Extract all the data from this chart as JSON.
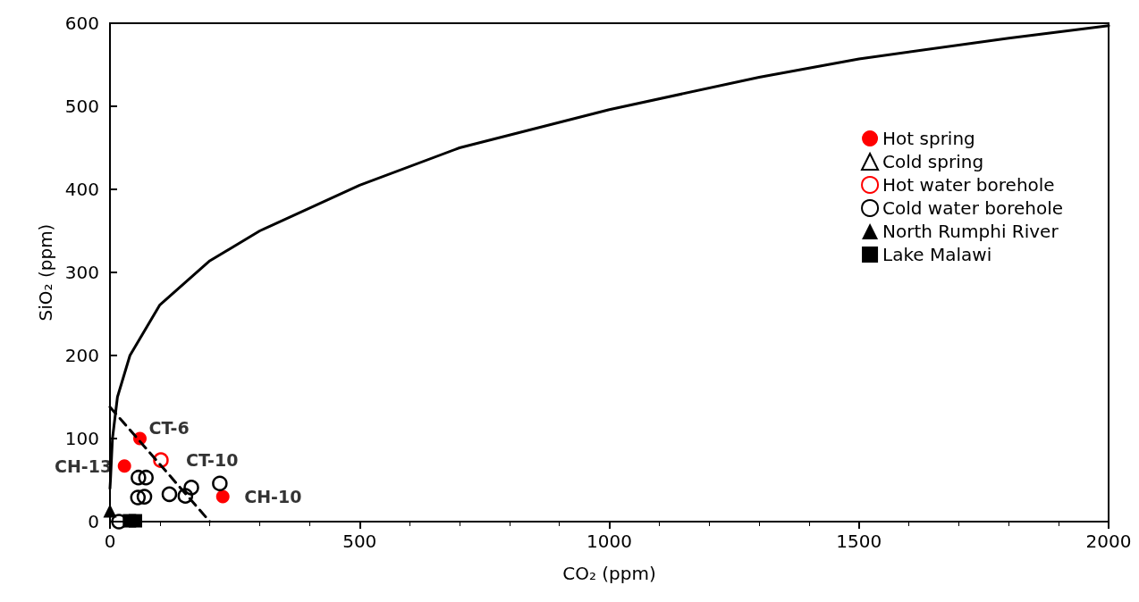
{
  "chart_data": {
    "type": "scatter",
    "xlabel": "CO₂ (ppm)",
    "ylabel": "SiO₂ (ppm)",
    "xlim": [
      0,
      2000
    ],
    "xticks": [
      0,
      500,
      1000,
      1500,
      2000
    ],
    "ylim": [
      0,
      600
    ],
    "yticks": [
      0,
      100,
      200,
      300,
      400,
      500,
      600
    ],
    "grid": false,
    "legend": "right",
    "series": [
      {
        "name": "Hot spring",
        "color": "#ff0000",
        "marker": "circle",
        "x": [
          60,
          29,
          226
        ],
        "values": [
          100,
          67,
          30
        ]
      },
      {
        "name": "Cold spring",
        "color": "#000000",
        "marker": "triangle"
      },
      {
        "name": "Hot water borehole",
        "color": "#ff0000",
        "marker": "circle",
        "x": [
          102
        ],
        "values": [
          74
        ]
      },
      {
        "name": "Cold water borehole",
        "color": "#000000",
        "marker": "circle",
        "x": [
          57,
          72,
          56,
          69,
          119,
          151,
          163,
          220,
          18
        ],
        "values": [
          53,
          53,
          29,
          30,
          33,
          31,
          41,
          46,
          0
        ]
      },
      {
        "name": "North Rumphi River",
        "color": "#000000",
        "marker": "triangle",
        "x": [
          0
        ],
        "values": [
          13
        ]
      },
      {
        "name": "Lake Malawi",
        "color": "#000000",
        "marker": "square",
        "x": [
          39,
          51
        ],
        "values": [
          1,
          1
        ]
      },
      {
        "type": "line",
        "color": "#000000",
        "marker": "none",
        "line_style": "solid",
        "x": [
          0,
          1,
          5,
          15,
          40,
          100,
          200,
          300,
          500,
          700,
          1000,
          1300,
          1500,
          1800,
          2000
        ],
        "values": [
          40,
          50,
          100,
          150,
          200,
          261,
          314,
          350,
          405,
          450,
          496,
          535,
          557,
          582,
          597
        ]
      },
      {
        "type": "line",
        "color": "#000000",
        "marker": "none",
        "line_style": "dashed",
        "x": [
          0,
          200
        ],
        "values": [
          138,
          0
        ]
      }
    ],
    "annotations": [
      {
        "text": "CT-6",
        "x": 60,
        "y": 100
      },
      {
        "text": "CH-13",
        "x": 29,
        "y": 67
      },
      {
        "text": "CT-10",
        "x": 102,
        "y": 74
      },
      {
        "text": "CH-10",
        "x": 226,
        "y": 30
      }
    ]
  }
}
